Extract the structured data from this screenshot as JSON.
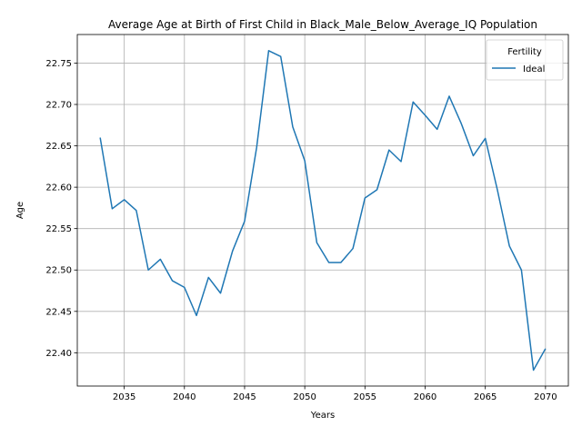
{
  "chart_data": {
    "type": "line",
    "title": "Average Age at Birth of First Child in Black_Male_Below_Average_IQ Population",
    "xlabel": "Years",
    "ylabel": "Age",
    "xlim": [
      2031.1,
      2071.9
    ],
    "ylim": [
      22.3598,
      22.7845
    ],
    "xticks": [
      2035,
      2040,
      2045,
      2050,
      2055,
      2060,
      2065,
      2070
    ],
    "yticks": [
      22.4,
      22.45,
      22.5,
      22.55,
      22.6,
      22.65,
      22.7,
      22.75
    ],
    "grid": true,
    "legend": {
      "title": "Fertility",
      "placement": "top-right"
    },
    "series": [
      {
        "name": "Ideal",
        "color": "#1f77b4",
        "x": [
          2033,
          2034,
          2035,
          2036,
          2037,
          2038,
          2039,
          2040,
          2041,
          2042,
          2043,
          2044,
          2045,
          2046,
          2047,
          2048,
          2049,
          2050,
          2051,
          2052,
          2053,
          2054,
          2055,
          2056,
          2057,
          2058,
          2059,
          2060,
          2061,
          2062,
          2063,
          2064,
          2065,
          2066,
          2067,
          2068,
          2069,
          2070
        ],
        "y": [
          22.66,
          22.574,
          22.585,
          22.572,
          22.5,
          22.513,
          22.487,
          22.479,
          22.445,
          22.491,
          22.472,
          22.523,
          22.559,
          22.648,
          22.765,
          22.758,
          22.673,
          22.632,
          22.533,
          22.509,
          22.509,
          22.526,
          22.587,
          22.597,
          22.645,
          22.631,
          22.703,
          22.687,
          22.67,
          22.71,
          22.677,
          22.638,
          22.659,
          22.597,
          22.529,
          22.5,
          22.379,
          22.405
        ]
      }
    ]
  }
}
